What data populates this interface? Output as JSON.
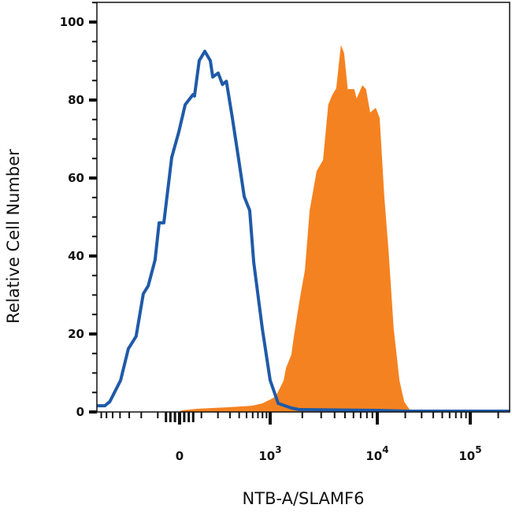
{
  "chart_data": {
    "type": "area",
    "title": "",
    "xlabel": "NTB-A/SLAMF6",
    "ylabel": "Relative Cell Number",
    "xscale": "biexponential",
    "xlim": [
      -860,
      270000
    ],
    "ylim": [
      0,
      105
    ],
    "grid": false,
    "legend": "none",
    "y_ticks": [
      {
        "value": 0,
        "label": "0"
      },
      {
        "value": 20,
        "label": "20"
      },
      {
        "value": 40,
        "label": "40"
      },
      {
        "value": 60,
        "label": "60"
      },
      {
        "value": 80,
        "label": "80"
      },
      {
        "value": 100,
        "label": "100"
      }
    ],
    "x_ticks": [
      {
        "value": 0,
        "base": "0",
        "exp": ""
      },
      {
        "value": 1000,
        "base": "10",
        "exp": "3"
      },
      {
        "value": 10000,
        "base": "10",
        "exp": "4"
      },
      {
        "value": 100000,
        "base": "10",
        "exp": "5"
      }
    ],
    "series": [
      {
        "style": "line",
        "color": "#1f5aa8",
        "x": [
          -860,
          -630,
          -545,
          -393,
          -309,
          -239,
          -186,
          -154,
          -114,
          -93,
          -70,
          -34,
          -3,
          24,
          59,
          66,
          89,
          118,
          150,
          165,
          202,
          234,
          267,
          324,
          395,
          467,
          549,
          618,
          795,
          1000,
          1190,
          1580,
          1875,
          10000,
          22300,
          270000
        ],
        "y": [
          1.6,
          1.6,
          2.6,
          8.1,
          16.2,
          19.4,
          30.3,
          32.3,
          39.0,
          48.5,
          48.5,
          65.3,
          71.9,
          78.8,
          81.4,
          81.0,
          90.1,
          92.5,
          90.1,
          85.9,
          86.9,
          84.0,
          84.8,
          75.4,
          64.6,
          55.2,
          51.7,
          38.4,
          21.4,
          8.1,
          2.2,
          1.0,
          0.6,
          0.4,
          0.2,
          0.2
        ]
      },
      {
        "style": "filled",
        "color": "#f58220",
        "x": [
          -860,
          0,
          7,
          78,
          267,
          588,
          795,
          1000,
          1127,
          1335,
          1407,
          1580,
          1668,
          1875,
          2115,
          2340,
          2720,
          3120,
          3490,
          3820,
          4140,
          4580,
          4900,
          5310,
          6100,
          6420,
          7250,
          7850,
          8580,
          9680,
          10600,
          11900,
          13200,
          15000,
          17300,
          19500,
          22300,
          26000,
          30000,
          270000
        ],
        "y": [
          0,
          0,
          0.4,
          0.8,
          1.2,
          1.6,
          2.2,
          3.2,
          4.0,
          8.0,
          11.3,
          14.7,
          19.4,
          28.3,
          36.4,
          51.7,
          61.8,
          64.6,
          78.8,
          81.4,
          83.0,
          94.1,
          92.1,
          82.8,
          82.8,
          80.4,
          83.8,
          82.8,
          76.8,
          78.0,
          75.4,
          55.2,
          41.6,
          21.4,
          8.1,
          2.6,
          0.6,
          0.4,
          0,
          0
        ]
      }
    ]
  }
}
